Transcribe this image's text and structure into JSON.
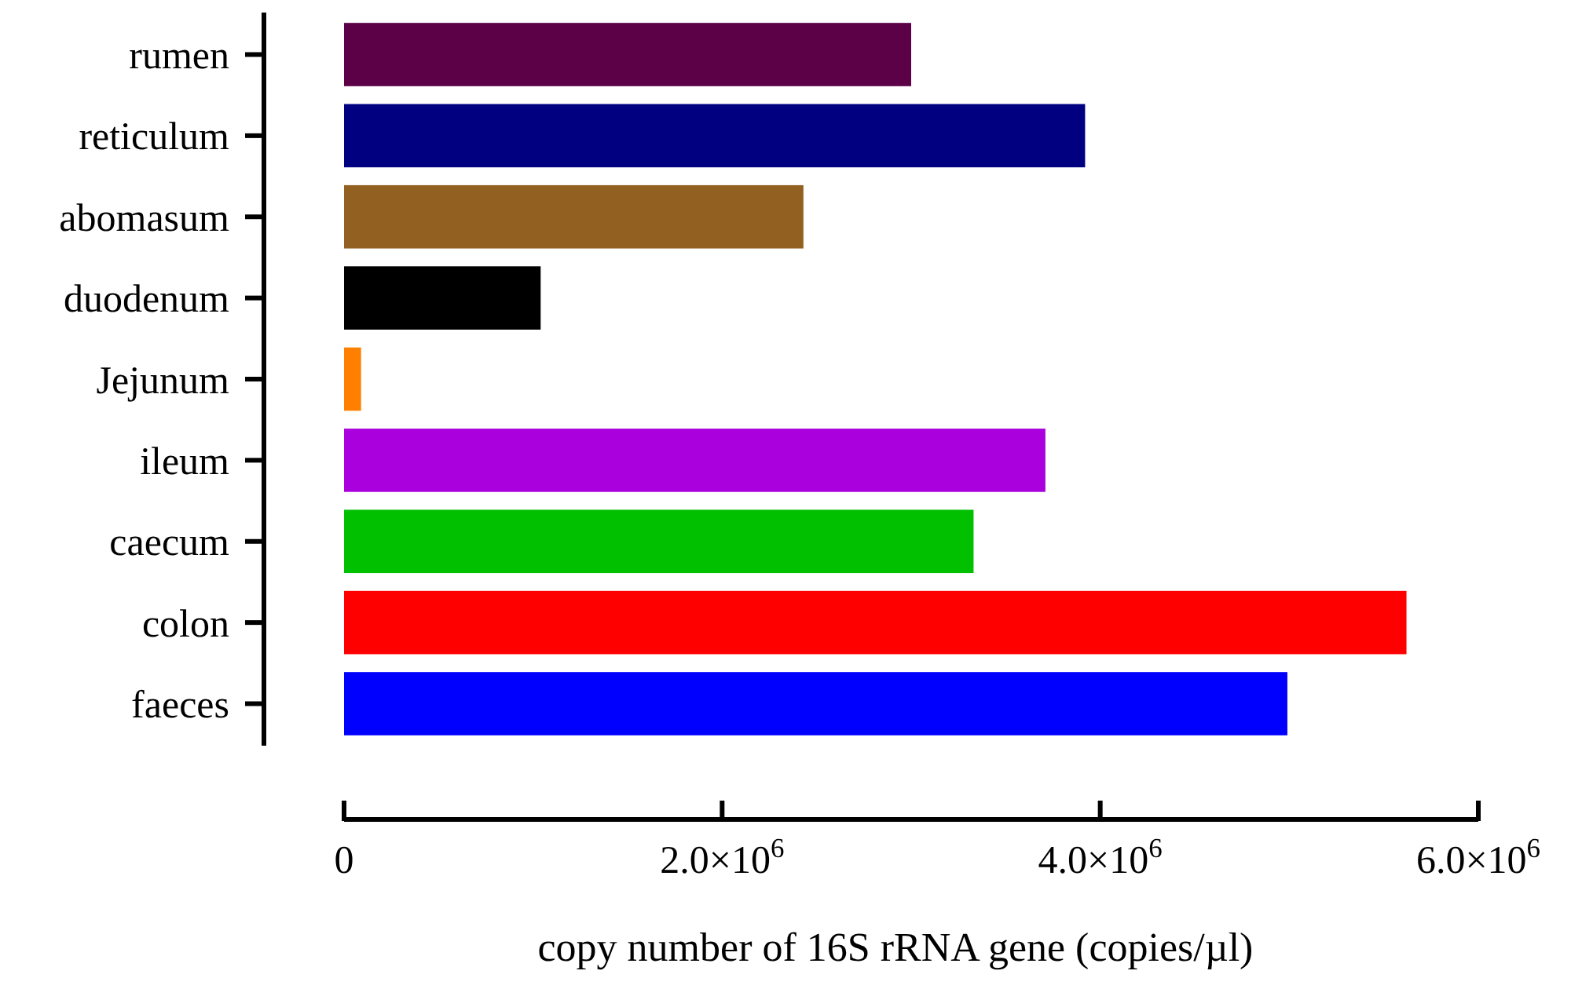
{
  "chart_data": {
    "type": "bar",
    "orientation": "horizontal",
    "xlabel": "copy number of 16S rRNA gene (copies/µl)",
    "categories": [
      "rumen",
      "reticulum",
      "abomasum",
      "duodenum",
      "Jejunum",
      "ileum",
      "caecum",
      "colon",
      "faeces"
    ],
    "values": [
      3000000,
      3920000,
      2430000,
      1040000,
      90000,
      3710000,
      3330000,
      5620000,
      4990000
    ],
    "colors": [
      "#5c0047",
      "#000080",
      "#926020",
      "#000000",
      "#ff8000",
      "#aa00dd",
      "#00c000",
      "#ff0000",
      "#0000ff"
    ],
    "xlim": [
      0,
      6000000
    ],
    "xticks": [
      0,
      {
        "value": 2000000,
        "label": "2.0×10$^{6}$"
      },
      {
        "value": 4000000,
        "label": "4.0×10$^{6}$"
      },
      {
        "value": 6000000,
        "label": "6.0×10$^{6}$"
      }
    ],
    "grid": false
  }
}
